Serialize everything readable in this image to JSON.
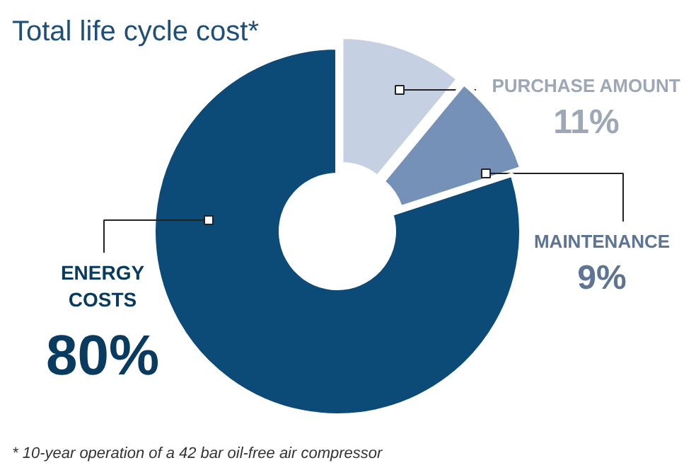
{
  "chart_data": {
    "type": "donut",
    "title": "Total life cycle cost*",
    "categories": [
      "PURCHASE AMOUNT",
      "MAINTENANCE",
      "ENERGY COSTS"
    ],
    "values": [
      11,
      9,
      80
    ],
    "value_labels": [
      "11%",
      "9%",
      "80%"
    ],
    "colors": [
      "#c5d1e3",
      "#7691b8",
      "#0c4a78"
    ],
    "annotations": [
      "* 10-year operation of a 42 bar oil-free air compressor"
    ]
  }
}
